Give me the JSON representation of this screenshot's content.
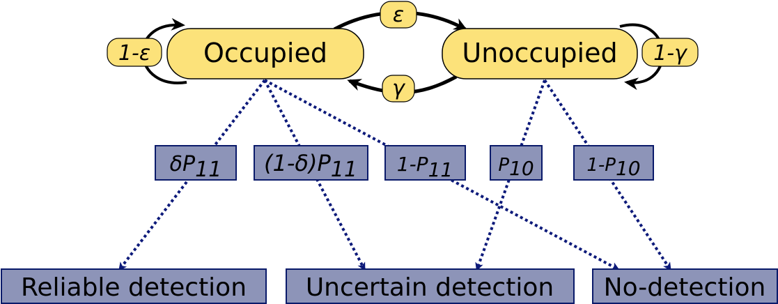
{
  "states": {
    "occupied": "Occupied",
    "unoccupied": "Unoccupied"
  },
  "transitions": {
    "occupied_self": "1-ε",
    "occupied_to_unoccupied": "ε",
    "unoccupied_to_occupied": "γ",
    "unoccupied_self": "1-γ"
  },
  "probabilities": {
    "delta_p11": {
      "main": "δP",
      "sub": "11"
    },
    "one_minus_delta_p11": {
      "main": "(1-δ)P",
      "sub": "11"
    },
    "one_minus_p11": {
      "main": "1-P",
      "sub": "11"
    },
    "p10": {
      "main": "P",
      "sub": "10"
    },
    "one_minus_p10": {
      "main": "1-P",
      "sub": "10"
    }
  },
  "outcomes": {
    "reliable": "Reliable detection",
    "uncertain": "Uncertain detection",
    "no_detection": "No-detection"
  },
  "colors": {
    "state_fill": "#fce27a",
    "state_stroke": "#000000",
    "box_fill": "#8d94b8",
    "box_stroke": "#0a1a6a",
    "dotted_stroke": "#0d1a7a"
  }
}
